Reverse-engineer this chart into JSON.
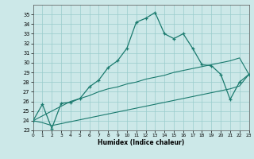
{
  "xlabel": "Humidex (Indice chaleur)",
  "x_data": [
    0,
    1,
    2,
    3,
    4,
    5,
    6,
    7,
    8,
    9,
    10,
    11,
    12,
    13,
    14,
    15,
    16,
    17,
    18,
    19,
    20,
    21,
    22,
    23
  ],
  "main_line": [
    24.0,
    25.7,
    23.2,
    25.8,
    25.9,
    26.3,
    27.5,
    28.2,
    29.5,
    30.2,
    31.5,
    34.2,
    34.6,
    35.2,
    33.0,
    32.5,
    33.0,
    31.5,
    29.8,
    29.7,
    28.8,
    26.2,
    28.0,
    28.8
  ],
  "upper_line": [
    24.0,
    24.5,
    25.0,
    25.5,
    26.0,
    26.3,
    26.6,
    27.0,
    27.3,
    27.5,
    27.8,
    28.0,
    28.3,
    28.5,
    28.7,
    29.0,
    29.2,
    29.4,
    29.6,
    29.8,
    30.0,
    30.2,
    30.5,
    28.8
  ],
  "lower_line": [
    24.0,
    23.8,
    23.5,
    23.7,
    23.9,
    24.1,
    24.3,
    24.5,
    24.7,
    24.9,
    25.1,
    25.3,
    25.5,
    25.7,
    25.9,
    26.1,
    26.3,
    26.5,
    26.7,
    26.9,
    27.1,
    27.3,
    27.6,
    28.8
  ],
  "line_color": "#1a7a6e",
  "bg_color": "#cce8e8",
  "grid_color": "#99cccc",
  "ylim_min": 23,
  "ylim_max": 36,
  "xlim_min": 0,
  "xlim_max": 23,
  "yticks": [
    23,
    24,
    25,
    26,
    27,
    28,
    29,
    30,
    31,
    32,
    33,
    34,
    35
  ],
  "xticks": [
    0,
    1,
    2,
    3,
    4,
    5,
    6,
    7,
    8,
    9,
    10,
    11,
    12,
    13,
    14,
    15,
    16,
    17,
    18,
    19,
    20,
    21,
    22,
    23
  ]
}
